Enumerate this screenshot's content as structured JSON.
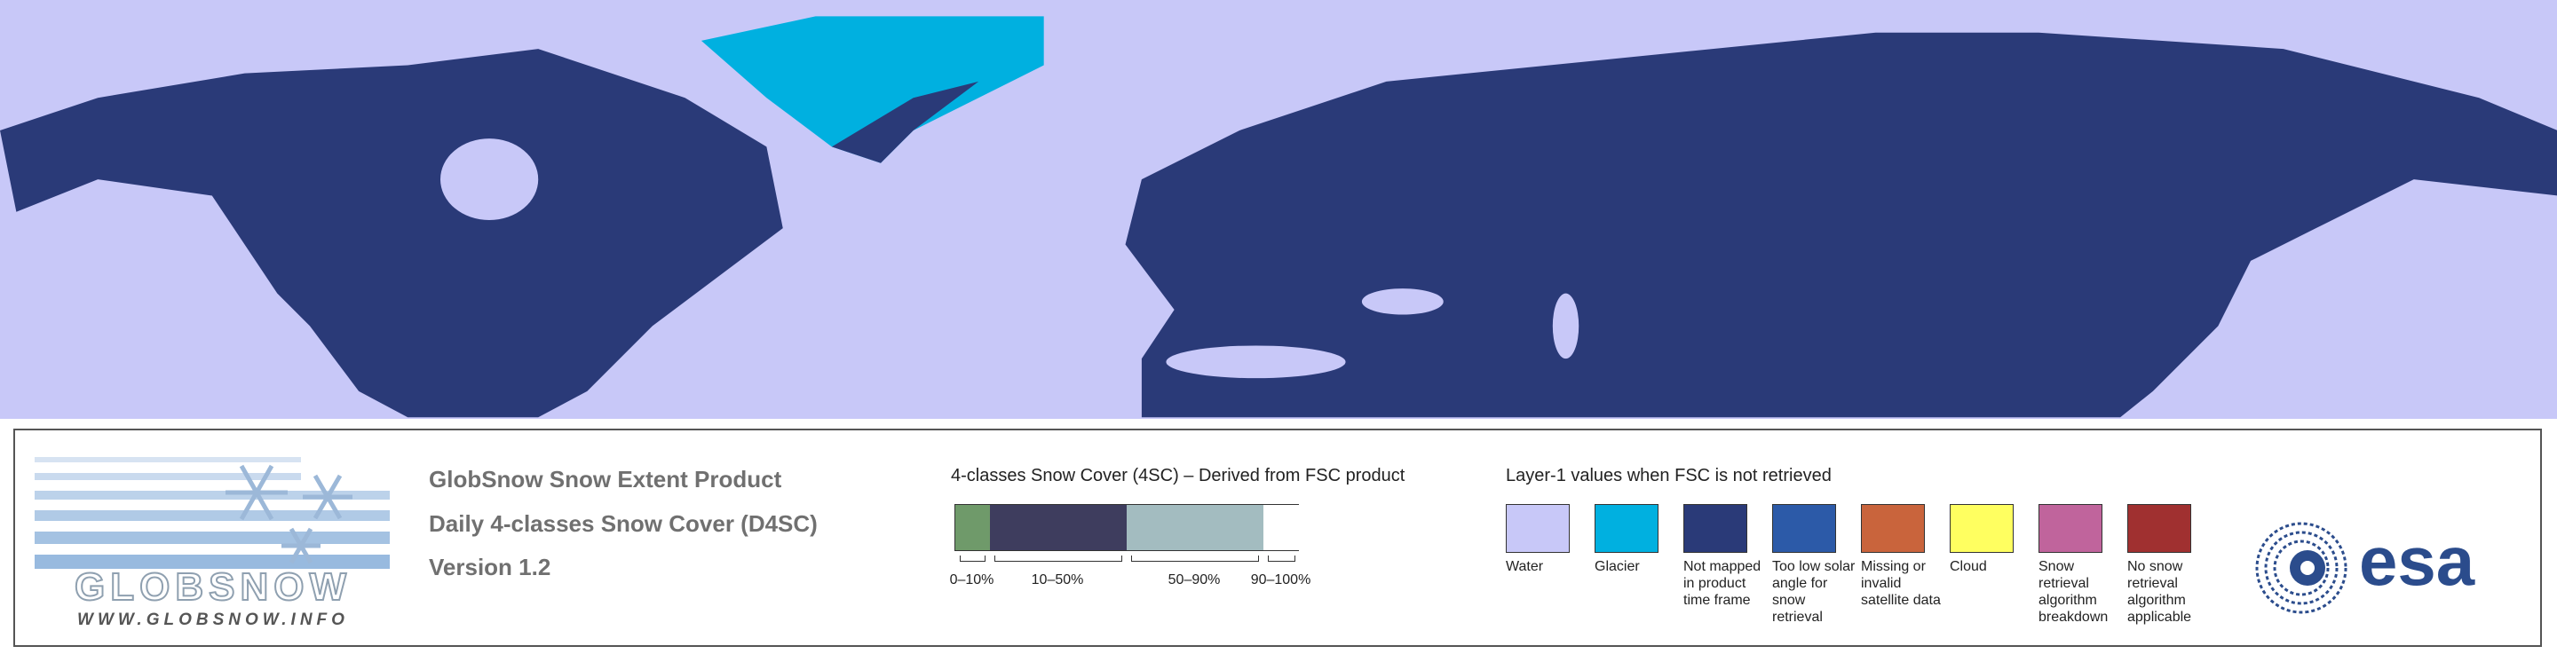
{
  "header": {
    "title": "GlobSnow Snow Extent Product",
    "subtitle": "Daily 4-classes Snow Cover (D4SC)",
    "version": "Version 1.2"
  },
  "logo": {
    "name": "GLOBSNOW",
    "url": "WWW.GLOBSNOW.INFO",
    "agency": "esa"
  },
  "snow_cover_legend": {
    "title": "4-classes Snow Cover (4SC) – Derived from FSC product",
    "classes": [
      {
        "label": "0–10%",
        "color": "#6f9a6a"
      },
      {
        "label": "10–50%",
        "color": "#3e3d5e"
      },
      {
        "label": "50–90%",
        "color": "#a3bcc0"
      },
      {
        "label": "90–100%",
        "color": "#ffffff"
      }
    ]
  },
  "layer1_legend": {
    "title": "Layer-1 values when FSC is not retrieved",
    "classes": [
      {
        "label": "Water",
        "color": "#c8c8f8"
      },
      {
        "label": "Glacier",
        "color": "#00b0e0"
      },
      {
        "label": "Not mapped in product time frame",
        "color": "#2a3a78"
      },
      {
        "label": "Too low solar angle for snow retrieval",
        "color": "#2c5aa8"
      },
      {
        "label": "Missing or invalid satellite data",
        "color": "#c9643c"
      },
      {
        "label": "Cloud",
        "color": "#ffff60"
      },
      {
        "label": "Snow retrieval algorithm breakdown",
        "color": "#c0649c"
      },
      {
        "label": "No snow retrieval algorithm applicable",
        "color": "#a03030"
      }
    ]
  }
}
